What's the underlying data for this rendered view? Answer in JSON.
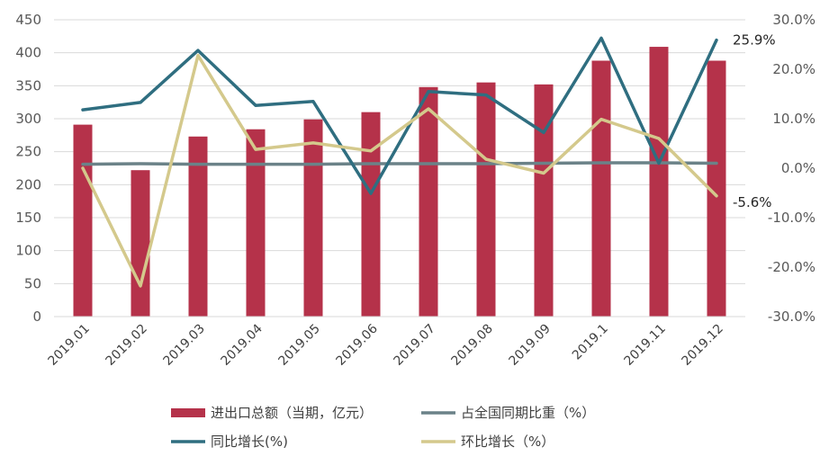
{
  "chart_data": {
    "type": "bar",
    "categories": [
      "2019.01",
      "2019.02",
      "2019.03",
      "2019.04",
      "2019.05",
      "2019.06",
      "2019.07",
      "2019.08",
      "2019.09",
      "2019.1",
      "2019.11",
      "2019.12"
    ],
    "left_axis": {
      "range": [
        0,
        450
      ],
      "ticks": [
        "0",
        "50",
        "100",
        "150",
        "200",
        "250",
        "300",
        "350",
        "400",
        "450"
      ]
    },
    "right_axis": {
      "range": [
        -30,
        30
      ],
      "ticks": [
        "-30.0%",
        "-20.0%",
        "-10.0%",
        "0.0%",
        "10.0%",
        "20.0%",
        "30.0%"
      ]
    },
    "grid": true,
    "legend_position": "bottom",
    "series": [
      {
        "name": "进出口总额（当期，亿元）",
        "type": "bar",
        "axis": "left",
        "color": "#B5324A",
        "values": [
          291,
          222,
          273,
          284,
          299,
          310,
          348,
          355,
          352,
          388,
          409,
          388
        ]
      },
      {
        "name": "占全国同期比重（%）",
        "type": "line",
        "axis": "right",
        "color": "#6B8288",
        "values": [
          0.8,
          0.9,
          0.8,
          0.8,
          0.8,
          0.9,
          0.9,
          0.9,
          1.0,
          1.1,
          1.1,
          1.0
        ]
      },
      {
        "name": "同比增长(%)",
        "type": "line",
        "axis": "right",
        "color": "#2F6E80",
        "values": [
          11.8,
          13.3,
          23.8,
          12.7,
          13.5,
          -5.1,
          15.5,
          14.8,
          7.2,
          26.3,
          1.0,
          25.9
        ]
      },
      {
        "name": "环比增长（%）",
        "type": "line",
        "axis": "right",
        "color": "#D4C98C",
        "values": [
          0.0,
          -23.8,
          22.8,
          3.8,
          5.1,
          3.5,
          12.0,
          1.8,
          -1.0,
          9.9,
          6.0,
          -5.6
        ]
      }
    ],
    "annotations": [
      {
        "text": "25.9%",
        "series": "同比增长(%)",
        "index": 11
      },
      {
        "text": "-5.6%",
        "series": "环比增长（%）",
        "index": 11
      }
    ]
  }
}
